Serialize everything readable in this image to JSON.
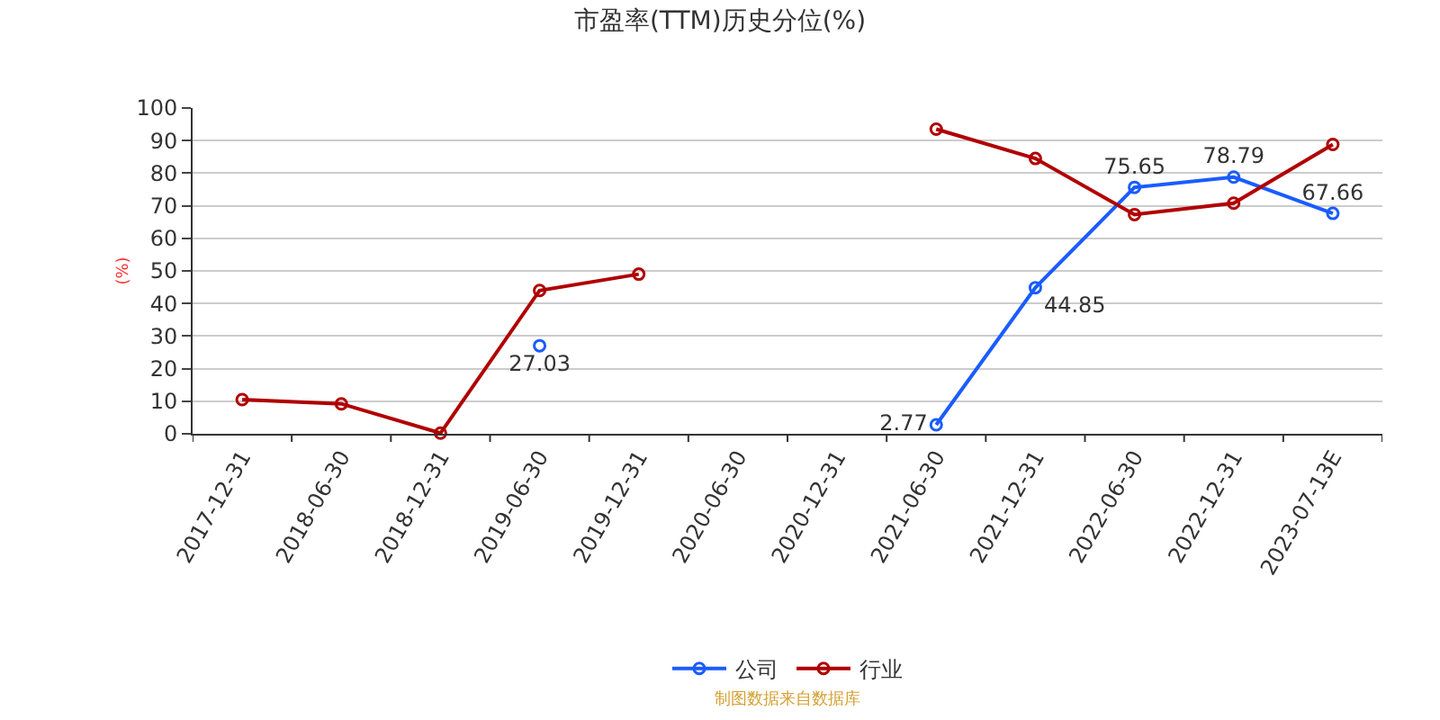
{
  "chart_data": {
    "type": "line",
    "title": "市盈率(TTM)历史分位(%)",
    "ylabel": "(%)",
    "categories": [
      "2017-12-31",
      "2018-06-30",
      "2018-12-31",
      "2019-06-30",
      "2019-12-31",
      "2020-06-30",
      "2020-12-31",
      "2021-06-30",
      "2021-12-31",
      "2022-06-30",
      "2022-12-31",
      "2023-07-13E"
    ],
    "series": [
      {
        "name": "公司",
        "color": "#1a5cff",
        "values": [
          null,
          null,
          null,
          27.03,
          null,
          null,
          null,
          2.77,
          44.85,
          75.65,
          78.79,
          67.66
        ],
        "value_labels": [
          null,
          null,
          null,
          "27.03",
          null,
          null,
          null,
          "2.77",
          "44.85",
          "75.65",
          "78.79",
          "67.66"
        ]
      },
      {
        "name": "行业",
        "color": "#b00000",
        "values": [
          10.5,
          9.2,
          0.2,
          44,
          49,
          null,
          null,
          93.5,
          84.5,
          67.3,
          70.8,
          88.8
        ]
      }
    ],
    "ylim": [
      0,
      100
    ],
    "yticks": [
      0,
      10,
      20,
      30,
      40,
      50,
      60,
      70,
      80,
      90,
      100
    ],
    "grid": "y",
    "legend": "bottom",
    "marker": "circle",
    "line_style": "solid",
    "annotations": [
      "制图数据来自数据库"
    ]
  }
}
